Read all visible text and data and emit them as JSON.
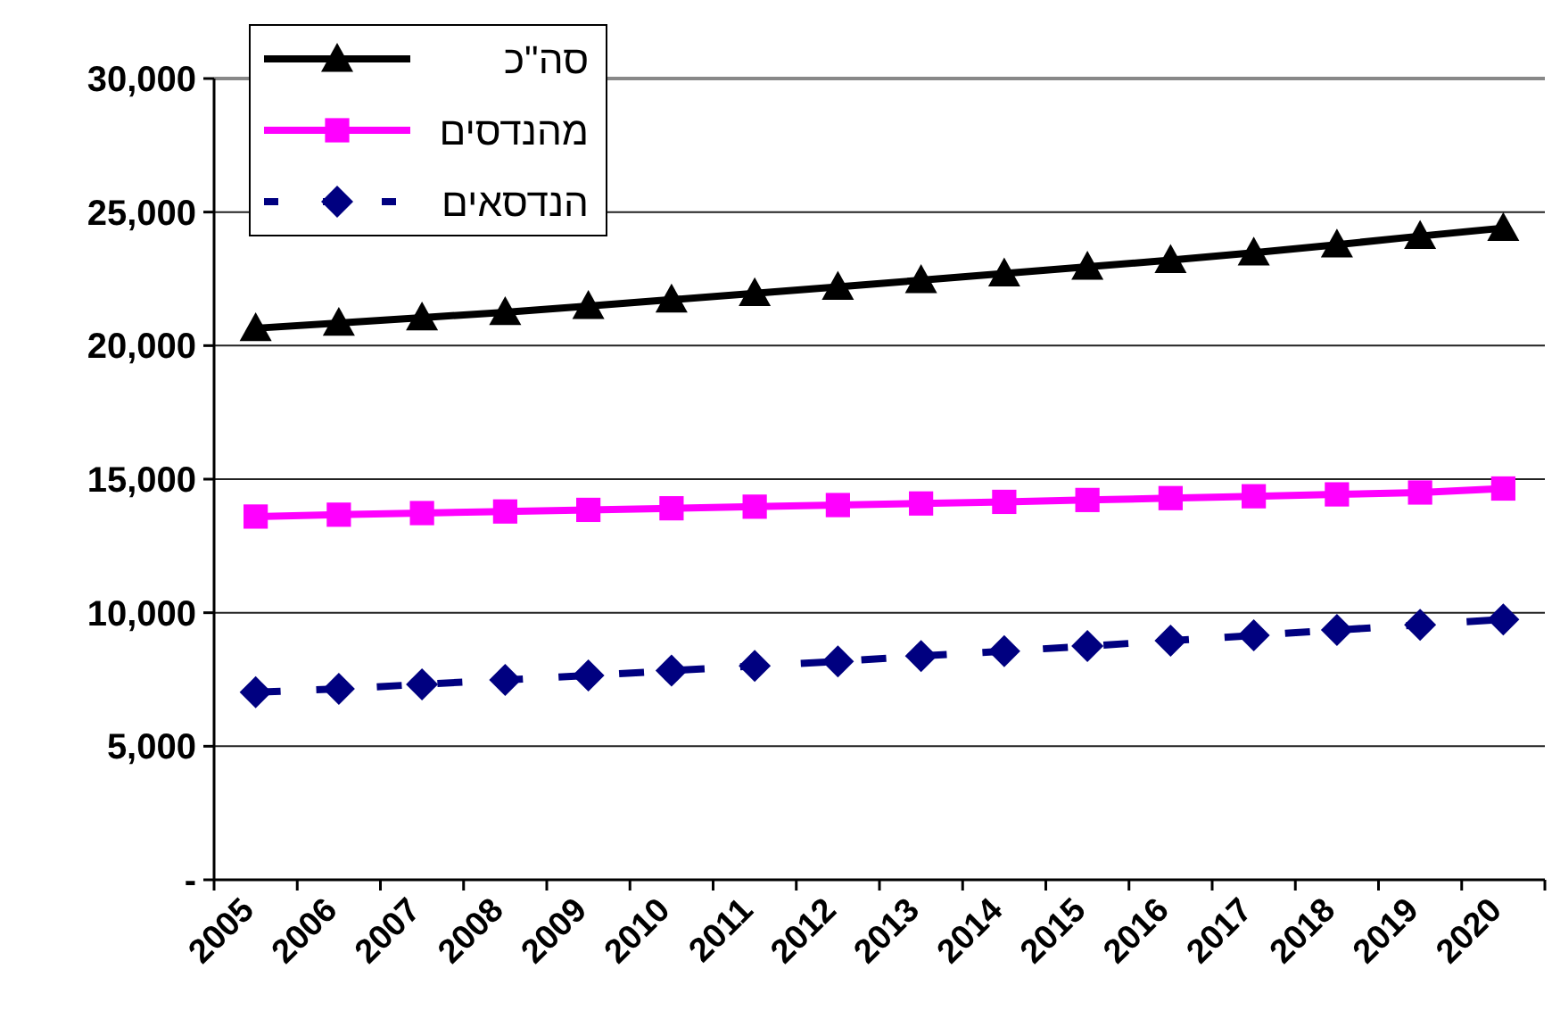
{
  "chart_data": {
    "type": "line",
    "categories": [
      "2005",
      "2006",
      "2007",
      "2008",
      "2009",
      "2010",
      "2011",
      "2012",
      "2013",
      "2014",
      "2015",
      "2016",
      "2017",
      "2018",
      "2019",
      "2020"
    ],
    "series": [
      {
        "name": "סה\"כ",
        "color": "#000000",
        "marker": "triangle",
        "line_style": "solid",
        "values": [
          20650,
          20850,
          21050,
          21250,
          21480,
          21720,
          21960,
          22200,
          22450,
          22700,
          22950,
          23200,
          23480,
          23780,
          24100,
          24400
        ]
      },
      {
        "name": "מהנדסים",
        "color": "#ff00ff",
        "marker": "square",
        "line_style": "solid",
        "values": [
          13600,
          13670,
          13730,
          13790,
          13850,
          13910,
          13970,
          14030,
          14090,
          14150,
          14220,
          14290,
          14360,
          14430,
          14500,
          14650
        ]
      },
      {
        "name": "הנדסאים",
        "color": "#000080",
        "marker": "diamond",
        "line_style": "dashed",
        "values": [
          7020,
          7150,
          7320,
          7480,
          7650,
          7830,
          8010,
          8180,
          8380,
          8560,
          8750,
          8950,
          9150,
          9350,
          9550,
          9750
        ]
      }
    ],
    "ylim": [
      0,
      30000
    ],
    "yticks": [
      {
        "value": 0,
        "label": "-"
      },
      {
        "value": 5000,
        "label": "5,000"
      },
      {
        "value": 10000,
        "label": "10,000"
      },
      {
        "value": 15000,
        "label": "15,000"
      },
      {
        "value": 20000,
        "label": "20,000"
      },
      {
        "value": 25000,
        "label": "25,000"
      },
      {
        "value": 30000,
        "label": "30,000"
      }
    ],
    "grid": "y",
    "legend": "top left"
  }
}
